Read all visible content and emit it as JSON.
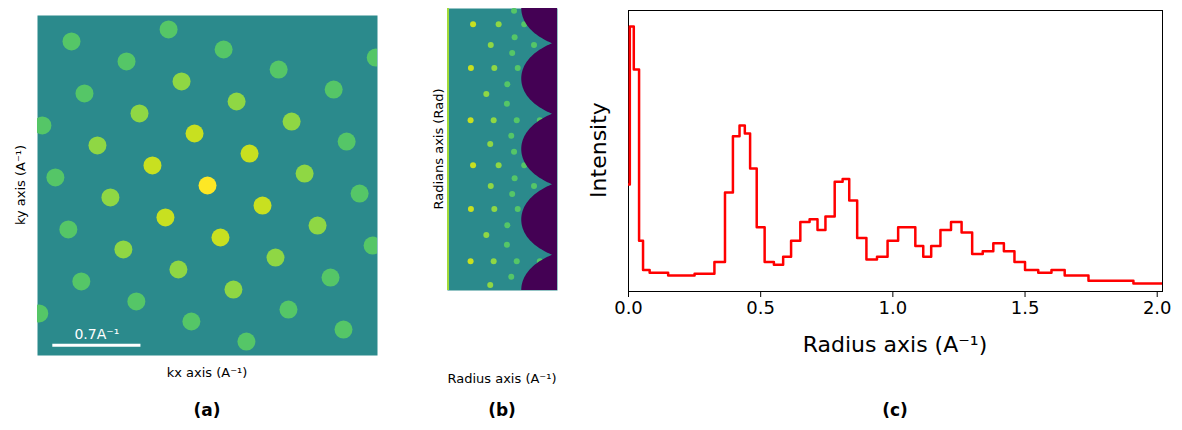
{
  "chart_data": [
    {
      "type": "scatter",
      "title": "(a)",
      "xlabel": "kx axis (A⁻¹)",
      "ylabel": "ky axis (A⁻¹)",
      "x": [
        -1.311,
        -0.874,
        -0.437,
        0,
        0.437,
        0.874,
        1.311,
        -1.208,
        -0.771,
        -0.334,
        0.103,
        0.54,
        0.977,
        -1.105,
        -0.668,
        -0.231,
        0.206,
        0.643,
        1.08,
        -1.002,
        -0.565,
        -0.128,
        0.309,
        -0.977,
        -0.54,
        -0.103,
        0.334,
        0.771,
        1.208,
        -1.08,
        -0.643,
        -0.206,
        0.231,
        0.668,
        1.105,
        -0.309,
        0.128,
        0.565,
        1.002,
        1.336,
        -1.336
      ],
      "y": [
        0.477,
        0.318,
        0.159,
        0,
        -0.159,
        -0.318,
        -0.477,
        0.064,
        -0.095,
        -0.254,
        -0.413,
        -0.572,
        -0.731,
        -0.349,
        -0.508,
        -0.667,
        -0.826,
        -0.985,
        -1.144,
        -0.762,
        -0.921,
        -1.08,
        -1.239,
        0.731,
        0.572,
        0.413,
        0.254,
        0.095,
        -0.064,
        1.144,
        0.985,
        0.826,
        0.667,
        0.508,
        0.349,
        1.239,
        1.08,
        0.921,
        0.762,
        1.016,
        -1.016
      ],
      "xlim": [
        -1.35,
        1.35
      ],
      "ylim": [
        -1.35,
        1.35
      ],
      "xticks": [],
      "yticks": [],
      "tick_labels": false,
      "scale_bar": {
        "value": 0.7,
        "label": "0.7A⁻¹"
      }
    },
    {
      "type": "polar_image",
      "title": "(b)",
      "xlabel": "Radius axis (A⁻¹)",
      "ylabel": "Radians axis (Rad)",
      "xlim": [
        0,
        2.0
      ],
      "ylim": [
        0,
        6.283
      ],
      "xticks": [],
      "yticks": [],
      "tick_labels": false
    },
    {
      "type": "line",
      "title": "(c)",
      "xlabel": "Radius axis (A⁻¹)",
      "ylabel": "Intensity",
      "x": [
        0.0,
        0.01,
        0.03,
        0.05,
        0.06,
        0.1,
        0.2,
        0.3,
        0.35,
        0.38,
        0.41,
        0.43,
        0.45,
        0.47,
        0.5,
        0.53,
        0.57,
        0.6,
        0.63,
        0.67,
        0.7,
        0.73,
        0.76,
        0.8,
        0.82,
        0.85,
        0.88,
        0.92,
        0.96,
        1.0,
        1.04,
        1.07,
        1.1,
        1.13,
        1.16,
        1.2,
        1.24,
        1.28,
        1.32,
        1.36,
        1.4,
        1.44,
        1.48,
        1.52,
        1.58,
        1.62,
        1.68,
        1.8,
        2.02
      ],
      "values": [
        40,
        99,
        83,
        19,
        8,
        7,
        6,
        6.6,
        11,
        37,
        58,
        62,
        59,
        46,
        24,
        11,
        10,
        13,
        19,
        26,
        27,
        23,
        28,
        41,
        42,
        34,
        20,
        12,
        13,
        19,
        24,
        24,
        17,
        13,
        17,
        23,
        26,
        22,
        14,
        15,
        18,
        15,
        11,
        8,
        7,
        8,
        6,
        4,
        3
      ],
      "xlim": [
        0,
        2.02
      ],
      "ylim": [
        0,
        105
      ],
      "xticks": [
        {
          "value": 0,
          "label": "0.0"
        },
        {
          "value": 0.5,
          "label": "0.5"
        },
        {
          "value": 1,
          "label": "1.0"
        },
        {
          "value": 1.5,
          "label": "1.5"
        },
        {
          "value": 2,
          "label": "2.0"
        }
      ],
      "yticks": [],
      "tick_labels": "x",
      "line_style": "step",
      "color": "#ff0000"
    }
  ]
}
